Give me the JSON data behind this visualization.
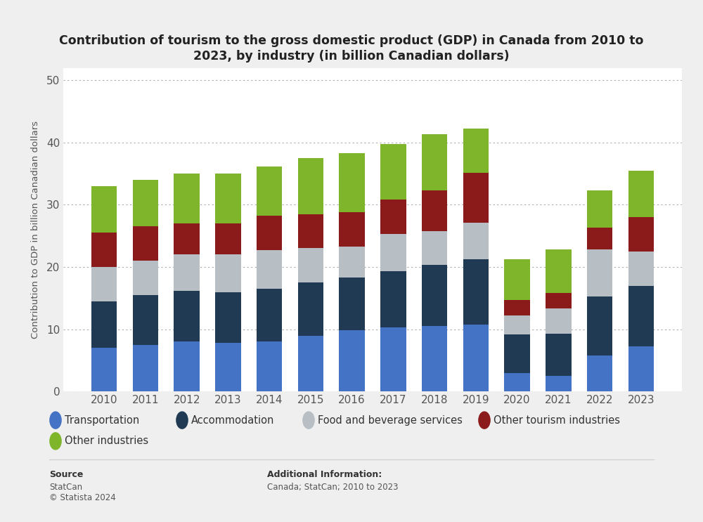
{
  "years": [
    2010,
    2011,
    2012,
    2013,
    2014,
    2015,
    2016,
    2017,
    2018,
    2019,
    2020,
    2021,
    2022,
    2023
  ],
  "transportation": [
    7.0,
    7.5,
    8.0,
    7.8,
    8.0,
    9.0,
    9.8,
    10.3,
    10.5,
    10.8,
    3.0,
    2.5,
    5.8,
    7.2
  ],
  "accommodation": [
    7.5,
    8.0,
    8.2,
    8.2,
    8.5,
    8.5,
    8.5,
    9.0,
    9.8,
    10.5,
    6.2,
    6.8,
    9.5,
    9.8
  ],
  "food_beverage": [
    5.5,
    5.5,
    5.8,
    6.0,
    6.2,
    5.5,
    5.0,
    6.0,
    5.5,
    5.8,
    3.0,
    4.0,
    7.5,
    5.5
  ],
  "other_tourism": [
    5.5,
    5.5,
    5.0,
    5.0,
    5.5,
    5.5,
    5.5,
    5.5,
    6.5,
    8.0,
    2.5,
    2.5,
    3.5,
    5.5
  ],
  "other_industries": [
    7.5,
    7.5,
    8.0,
    8.0,
    8.0,
    9.0,
    9.5,
    9.0,
    9.0,
    7.2,
    6.5,
    7.0,
    6.0,
    7.5
  ],
  "colors": {
    "transportation": "#4472c4",
    "accommodation": "#1f3a52",
    "food_beverage": "#b8bfc4",
    "other_tourism": "#8b1a1a",
    "other_industries": "#7eb52a"
  },
  "title_line1": "Contribution of tourism to the gross domestic product (GDP) in Canada from 2010 to",
  "title_line2": "2023, by industry (in billion Canadian dollars)",
  "ylabel": "Contribution to GDP in billion Canadian dollars",
  "ylim": [
    0,
    52
  ],
  "yticks": [
    0,
    10,
    20,
    30,
    40,
    50
  ],
  "bg_color": "#efefef",
  "plot_bg_color": "#ffffff",
  "source_label": "Source",
  "source_body": "StatCan\n© Statista 2024",
  "additional_label": "Additional Information:",
  "additional_body": "Canada; StatCan; 2010 to 2023",
  "legend_labels": [
    "Transportation",
    "Accommodation",
    "Food and beverage services",
    "Other tourism industries",
    "Other industries"
  ]
}
